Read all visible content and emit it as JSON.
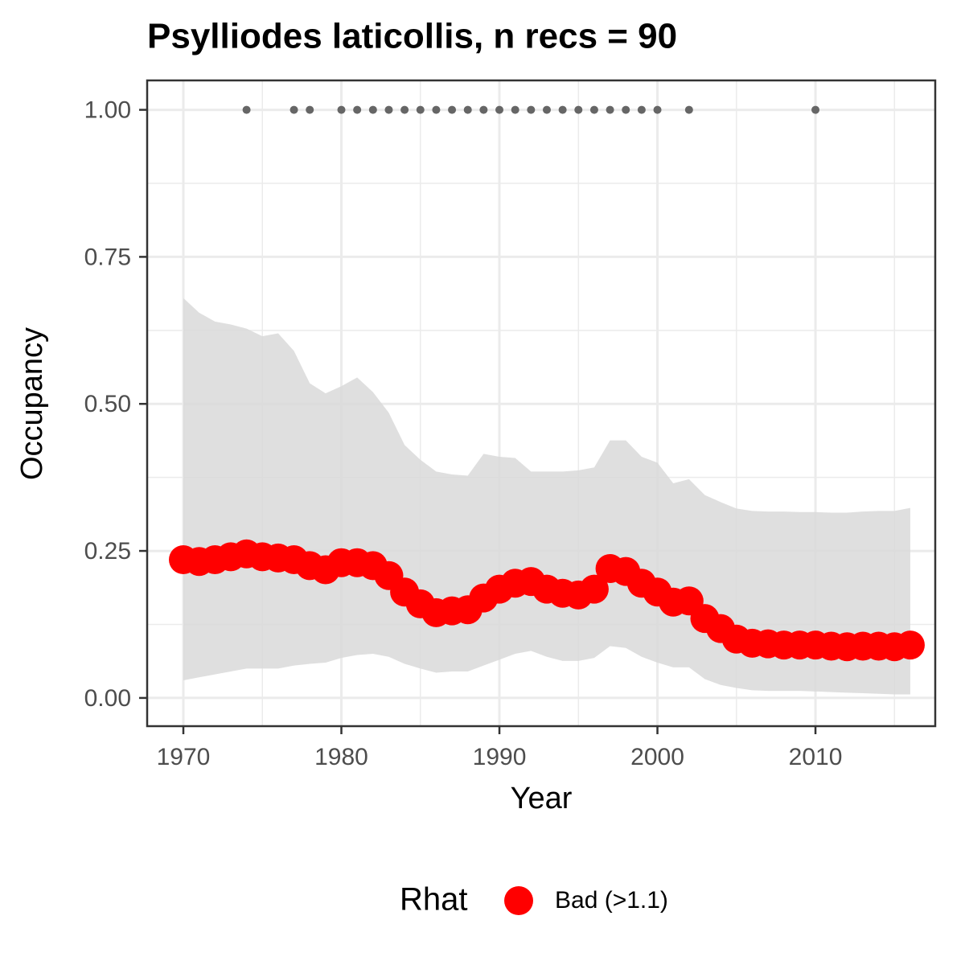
{
  "chart_data": {
    "type": "line",
    "title": "Psylliodes laticollis, n recs = 90",
    "x_label": "Year",
    "y_label": "Occupancy",
    "legend_title": "Rhat",
    "legend_position": "bottom",
    "grid": true,
    "x": [
      1970,
      1971,
      1972,
      1973,
      1974,
      1975,
      1976,
      1977,
      1978,
      1979,
      1980,
      1981,
      1982,
      1983,
      1984,
      1985,
      1986,
      1987,
      1988,
      1989,
      1990,
      1991,
      1992,
      1993,
      1994,
      1995,
      1996,
      1997,
      1998,
      1999,
      2000,
      2001,
      2002,
      2003,
      2004,
      2005,
      2006,
      2007,
      2008,
      2009,
      2010,
      2011,
      2012,
      2013,
      2014,
      2015,
      2016
    ],
    "series": [
      {
        "name": "Bad (>1.1)",
        "color": "#ff0000",
        "values": [
          0.235,
          0.232,
          0.235,
          0.24,
          0.245,
          0.24,
          0.238,
          0.235,
          0.225,
          0.218,
          0.23,
          0.23,
          0.225,
          0.208,
          0.18,
          0.16,
          0.145,
          0.148,
          0.15,
          0.17,
          0.185,
          0.195,
          0.198,
          0.185,
          0.178,
          0.175,
          0.185,
          0.22,
          0.215,
          0.195,
          0.18,
          0.163,
          0.165,
          0.135,
          0.118,
          0.1,
          0.093,
          0.092,
          0.09,
          0.09,
          0.09,
          0.088,
          0.087,
          0.088,
          0.088,
          0.087,
          0.09
        ]
      }
    ],
    "ribbon": {
      "color": "#d9d9d9",
      "lower": [
        0.03,
        0.035,
        0.04,
        0.045,
        0.05,
        0.05,
        0.05,
        0.055,
        0.058,
        0.06,
        0.068,
        0.073,
        0.075,
        0.07,
        0.058,
        0.05,
        0.043,
        0.045,
        0.045,
        0.055,
        0.065,
        0.075,
        0.08,
        0.07,
        0.063,
        0.063,
        0.068,
        0.088,
        0.085,
        0.07,
        0.06,
        0.052,
        0.052,
        0.032,
        0.022,
        0.017,
        0.013,
        0.012,
        0.012,
        0.012,
        0.011,
        0.01,
        0.009,
        0.008,
        0.007,
        0.006,
        0.006
      ],
      "upper": [
        0.68,
        0.655,
        0.64,
        0.635,
        0.628,
        0.615,
        0.62,
        0.59,
        0.535,
        0.518,
        0.53,
        0.545,
        0.52,
        0.485,
        0.43,
        0.405,
        0.385,
        0.38,
        0.378,
        0.415,
        0.41,
        0.408,
        0.385,
        0.385,
        0.385,
        0.387,
        0.392,
        0.438,
        0.438,
        0.41,
        0.4,
        0.365,
        0.372,
        0.345,
        0.333,
        0.322,
        0.318,
        0.317,
        0.317,
        0.316,
        0.316,
        0.315,
        0.315,
        0.317,
        0.318,
        0.318,
        0.323
      ]
    },
    "records": {
      "color": "#666666",
      "x": [
        1974,
        1977,
        1978,
        1980,
        1981,
        1982,
        1983,
        1984,
        1985,
        1986,
        1987,
        1988,
        1989,
        1990,
        1991,
        1992,
        1993,
        1994,
        1995,
        1996,
        1997,
        1998,
        1999,
        2000,
        2002,
        2010
      ],
      "values": [
        1,
        1,
        1,
        1,
        1,
        1,
        1,
        1,
        1,
        1,
        1,
        1,
        1,
        1,
        1,
        1,
        1,
        1,
        1,
        1,
        1,
        1,
        1,
        1,
        1,
        1
      ]
    },
    "xlim": [
      1967.71,
      2017.58
    ],
    "ylim": [
      -0.048,
      1.05
    ],
    "xticks": [
      1970,
      1980,
      1990,
      2000,
      2010
    ],
    "minor_xticks": [
      1975,
      1985,
      1995,
      2005,
      2015
    ],
    "yticks": [
      {
        "value": 0,
        "label": "0.00"
      },
      {
        "value": 0.25,
        "label": "0.25"
      },
      {
        "value": 0.5,
        "label": "0.50"
      },
      {
        "value": 0.75,
        "label": "0.75"
      },
      {
        "value": 1,
        "label": "1.00"
      }
    ],
    "minor_yticks": [
      0.125,
      0.375,
      0.625,
      0.875
    ]
  }
}
